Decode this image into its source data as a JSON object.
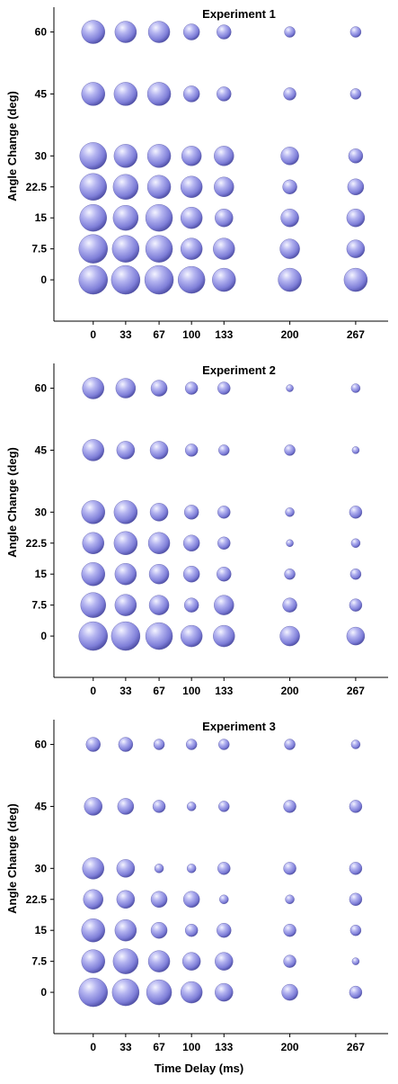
{
  "chart_data": [
    {
      "type": "scatter",
      "title": "Experiment 1",
      "ylabel": "Angle Change (deg)",
      "xlabel": "",
      "x_ticks": [
        0,
        33,
        67,
        100,
        133,
        200,
        267
      ],
      "y_ticks": [
        0,
        7.5,
        15,
        22.5,
        30,
        45,
        60
      ],
      "xlim": [
        -40,
        300
      ],
      "ylim": [
        -10,
        66
      ],
      "marker_color": "#8f8fe0",
      "size_values": {
        "60": [
          13,
          12,
          12,
          9,
          8,
          6,
          6
        ],
        "45": [
          13,
          13,
          13,
          9,
          8,
          7,
          6
        ],
        "30": [
          15,
          13,
          13,
          11,
          11,
          10,
          8
        ],
        "22.5": [
          15,
          14,
          13,
          12,
          11,
          8,
          9
        ],
        "15": [
          15,
          14,
          15,
          12,
          10,
          10,
          10
        ],
        "7.5": [
          16,
          15,
          15,
          12,
          12,
          11,
          10
        ],
        "0": [
          16,
          16,
          16,
          15,
          13,
          13,
          13
        ]
      }
    },
    {
      "type": "scatter",
      "title": "Experiment 2",
      "ylabel": "Angle Change (deg)",
      "xlabel": "",
      "x_ticks": [
        0,
        33,
        67,
        100,
        133,
        200,
        267
      ],
      "y_ticks": [
        0,
        7.5,
        15,
        22.5,
        30,
        45,
        60
      ],
      "xlim": [
        -40,
        300
      ],
      "ylim": [
        -10,
        66
      ],
      "marker_color": "#8f8fe0",
      "size_values": {
        "60": [
          12,
          11,
          9,
          7,
          7,
          4,
          5
        ],
        "45": [
          12,
          10,
          10,
          7,
          6,
          6,
          4
        ],
        "30": [
          13,
          13,
          10,
          8,
          7,
          5,
          7
        ],
        "22.5": [
          12,
          13,
          12,
          9,
          7,
          4,
          5
        ],
        "15": [
          13,
          12,
          11,
          9,
          8,
          6,
          6
        ],
        "7.5": [
          14,
          12,
          11,
          8,
          11,
          8,
          7
        ],
        "0": [
          16,
          16,
          15,
          12,
          12,
          11,
          10
        ]
      }
    },
    {
      "type": "scatter",
      "title": "Experiment 3",
      "ylabel": "Angle Change (deg)",
      "xlabel": "Time Delay (ms)",
      "x_ticks": [
        0,
        33,
        67,
        100,
        133,
        200,
        267
      ],
      "y_ticks": [
        0,
        7.5,
        15,
        22.5,
        30,
        45,
        60
      ],
      "xlim": [
        -40,
        300
      ],
      "ylim": [
        -10,
        66
      ],
      "marker_color": "#8f8fe0",
      "size_values": {
        "60": [
          8,
          8,
          6,
          6,
          6,
          6,
          5
        ],
        "45": [
          10,
          9,
          7,
          5,
          6,
          7,
          7
        ],
        "30": [
          12,
          10,
          5,
          5,
          7,
          7,
          7
        ],
        "22.5": [
          11,
          10,
          9,
          9,
          5,
          5,
          7
        ],
        "15": [
          13,
          12,
          9,
          7,
          8,
          7,
          6
        ],
        "7.5": [
          13,
          14,
          12,
          10,
          10,
          7,
          4
        ],
        "0": [
          16,
          15,
          14,
          12,
          10,
          9,
          7
        ]
      }
    }
  ]
}
